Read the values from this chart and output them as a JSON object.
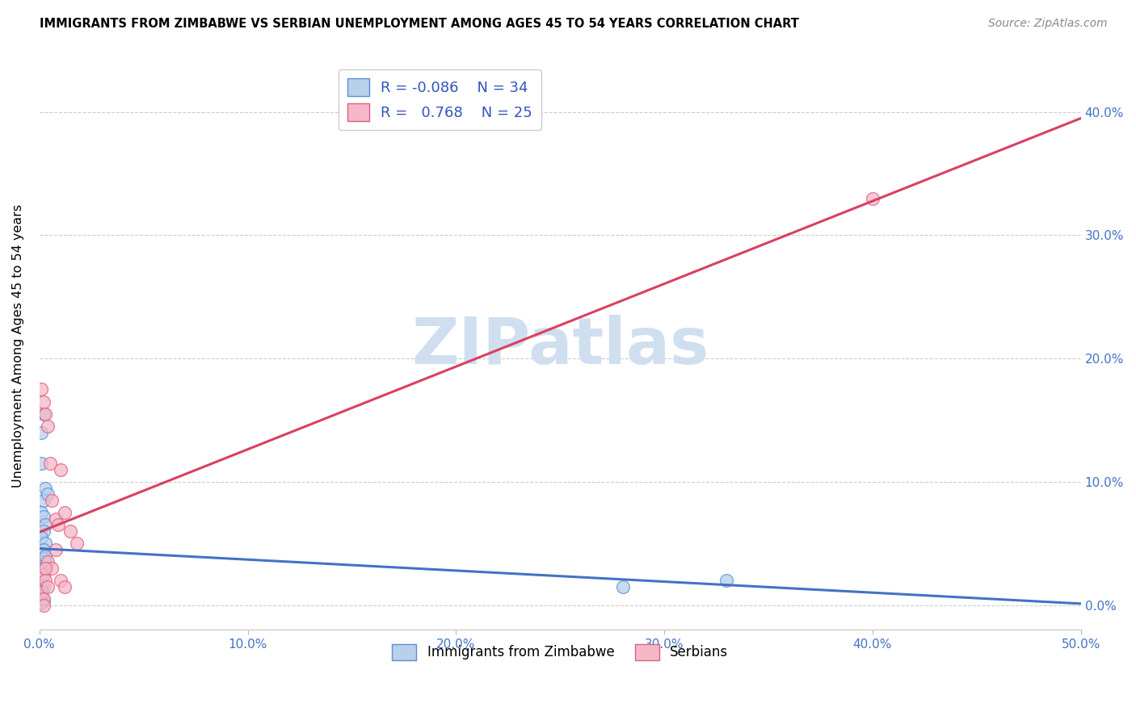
{
  "title": "IMMIGRANTS FROM ZIMBABWE VS SERBIAN UNEMPLOYMENT AMONG AGES 45 TO 54 YEARS CORRELATION CHART",
  "source": "Source: ZipAtlas.com",
  "ylabel": "Unemployment Among Ages 45 to 54 years",
  "xlim": [
    0.0,
    0.5
  ],
  "ylim": [
    -0.02,
    0.44
  ],
  "xticks": [
    0.0,
    0.1,
    0.2,
    0.3,
    0.4,
    0.5
  ],
  "yticks": [
    0.0,
    0.1,
    0.2,
    0.3,
    0.4
  ],
  "legend_r_zimbabwe": "-0.086",
  "legend_n_zimbabwe": "34",
  "legend_r_serbian": "0.768",
  "legend_n_serbian": "25",
  "zimbabwe_fill_color": "#b8d0ea",
  "serbian_fill_color": "#f5b8c8",
  "zimbabwe_edge_color": "#5b8ed6",
  "serbian_edge_color": "#e06080",
  "zimbabwe_line_color": "#4472C4",
  "serbian_line_color": "#d94060",
  "watermark_color": "#d0dff0",
  "zimbabwe_scatter_x": [
    0.001,
    0.002,
    0.001,
    0.003,
    0.002,
    0.004,
    0.001,
    0.002,
    0.003,
    0.002,
    0.001,
    0.003,
    0.002,
    0.001,
    0.002,
    0.001,
    0.003,
    0.002,
    0.001,
    0.0,
    0.0,
    0.001,
    0.002,
    0.001,
    0.0,
    0.001,
    0.0,
    0.001,
    0.002,
    0.001,
    0.001,
    0.33,
    0.28,
    0.003
  ],
  "zimbabwe_scatter_y": [
    0.14,
    0.155,
    0.115,
    0.095,
    0.085,
    0.09,
    0.075,
    0.072,
    0.065,
    0.06,
    0.055,
    0.05,
    0.045,
    0.042,
    0.038,
    0.035,
    0.035,
    0.03,
    0.025,
    0.022,
    0.018,
    0.016,
    0.014,
    0.012,
    0.01,
    0.008,
    0.006,
    0.005,
    0.004,
    0.003,
    0.002,
    0.02,
    0.015,
    0.04
  ],
  "serbian_scatter_x": [
    0.001,
    0.002,
    0.003,
    0.004,
    0.005,
    0.006,
    0.008,
    0.009,
    0.01,
    0.012,
    0.015,
    0.018,
    0.002,
    0.004,
    0.006,
    0.008,
    0.01,
    0.012,
    0.001,
    0.003,
    0.4,
    0.002,
    0.003,
    0.004,
    0.002
  ],
  "serbian_scatter_y": [
    0.175,
    0.165,
    0.155,
    0.145,
    0.115,
    0.085,
    0.07,
    0.065,
    0.11,
    0.075,
    0.06,
    0.05,
    0.025,
    0.035,
    0.03,
    0.045,
    0.02,
    0.015,
    0.01,
    0.03,
    0.33,
    0.005,
    0.02,
    0.015,
    0.0
  ]
}
